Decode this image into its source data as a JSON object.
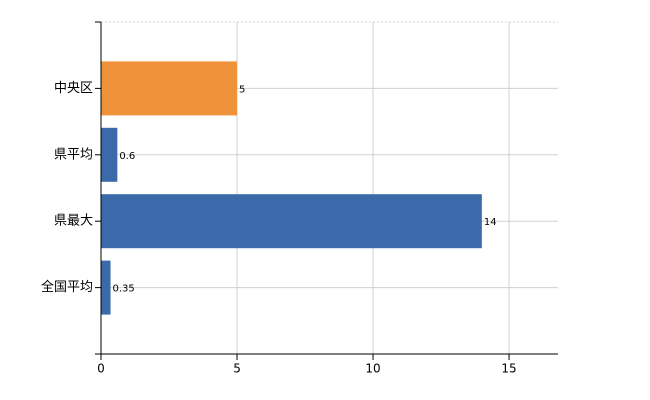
{
  "chart_data": {
    "type": "hbar",
    "categories": [
      "中央区",
      "県平均",
      "県最大",
      "全国平均"
    ],
    "values": [
      5,
      0.6,
      14,
      0.35
    ],
    "colors": [
      "#f0923a",
      "#3a6aaa",
      "#3a6aaa",
      "#3a6aaa"
    ],
    "xlim": [
      0,
      16.8
    ],
    "xticks": [
      0,
      5,
      10,
      15
    ],
    "grid": true
  }
}
